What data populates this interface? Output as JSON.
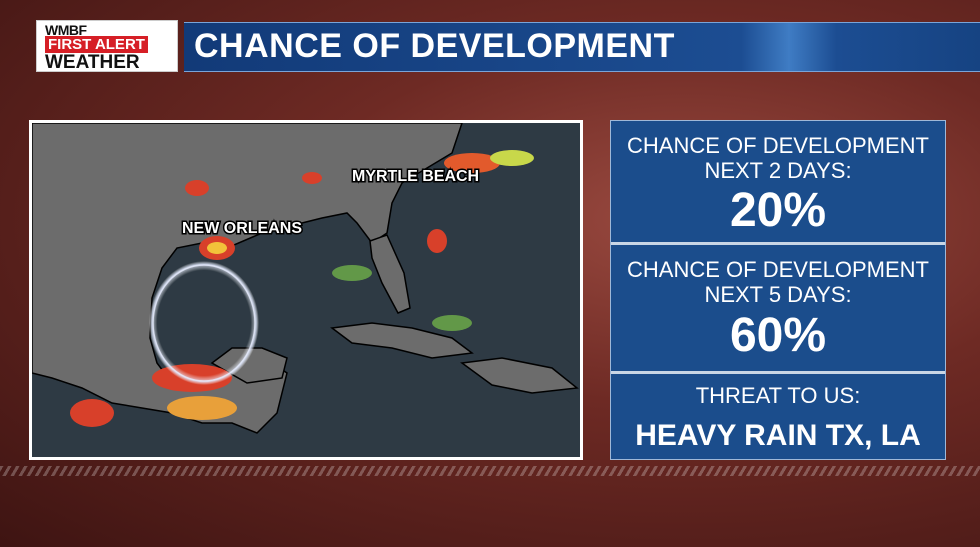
{
  "logo": {
    "station": "WMBF",
    "brand": "FIRST ALERT",
    "weather": "WEATHER"
  },
  "header": {
    "title": "CHANCE OF DEVELOPMENT"
  },
  "map": {
    "labels": [
      "MYRTLE BEACH",
      "NEW ORLEANS"
    ]
  },
  "panel": {
    "sections": [
      {
        "heading": "CHANCE OF DEVELOPMENT",
        "period": "NEXT 2 DAYS:",
        "value": "20%"
      },
      {
        "heading": "CHANCE OF DEVELOPMENT",
        "period": "NEXT 5 DAYS:",
        "value": "60%"
      }
    ],
    "threat": {
      "heading": "THREAT TO US:",
      "value": "HEAVY RAIN TX, LA"
    }
  }
}
